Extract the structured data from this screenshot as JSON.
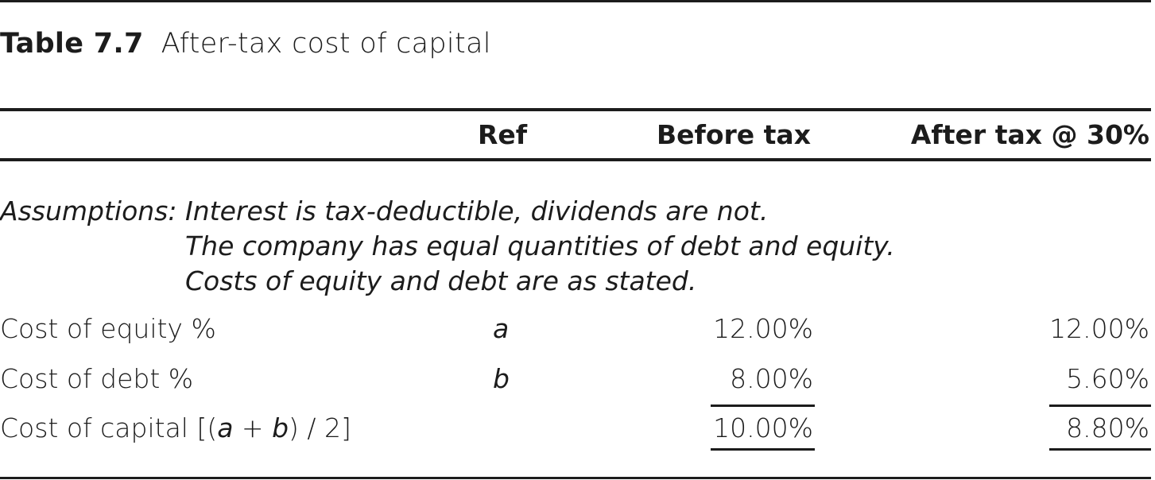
{
  "table": {
    "number": "Table 7.7",
    "title": "After-tax cost of capital",
    "columns": {
      "ref": "Ref",
      "before": "Before tax",
      "after": "After tax @ 30%"
    },
    "assumptions": {
      "label": "Assumptions:",
      "lines": [
        "Interest is tax-deductible, dividends are not.",
        "The company has equal quantities of debt and equity.",
        "Costs of equity and debt are as stated."
      ]
    },
    "rows": [
      {
        "label": "Cost of equity %",
        "ref": "a",
        "before": "12.00%",
        "after": "12.00%"
      },
      {
        "label": "Cost of debt %",
        "ref": "b",
        "before": "8.00%",
        "after": "5.60%"
      },
      {
        "label_parts": [
          "Cost of capital [(",
          "a",
          " + ",
          "b",
          ") / 2]"
        ],
        "ref": "",
        "before": "10.00%",
        "after": "8.80%"
      }
    ]
  }
}
